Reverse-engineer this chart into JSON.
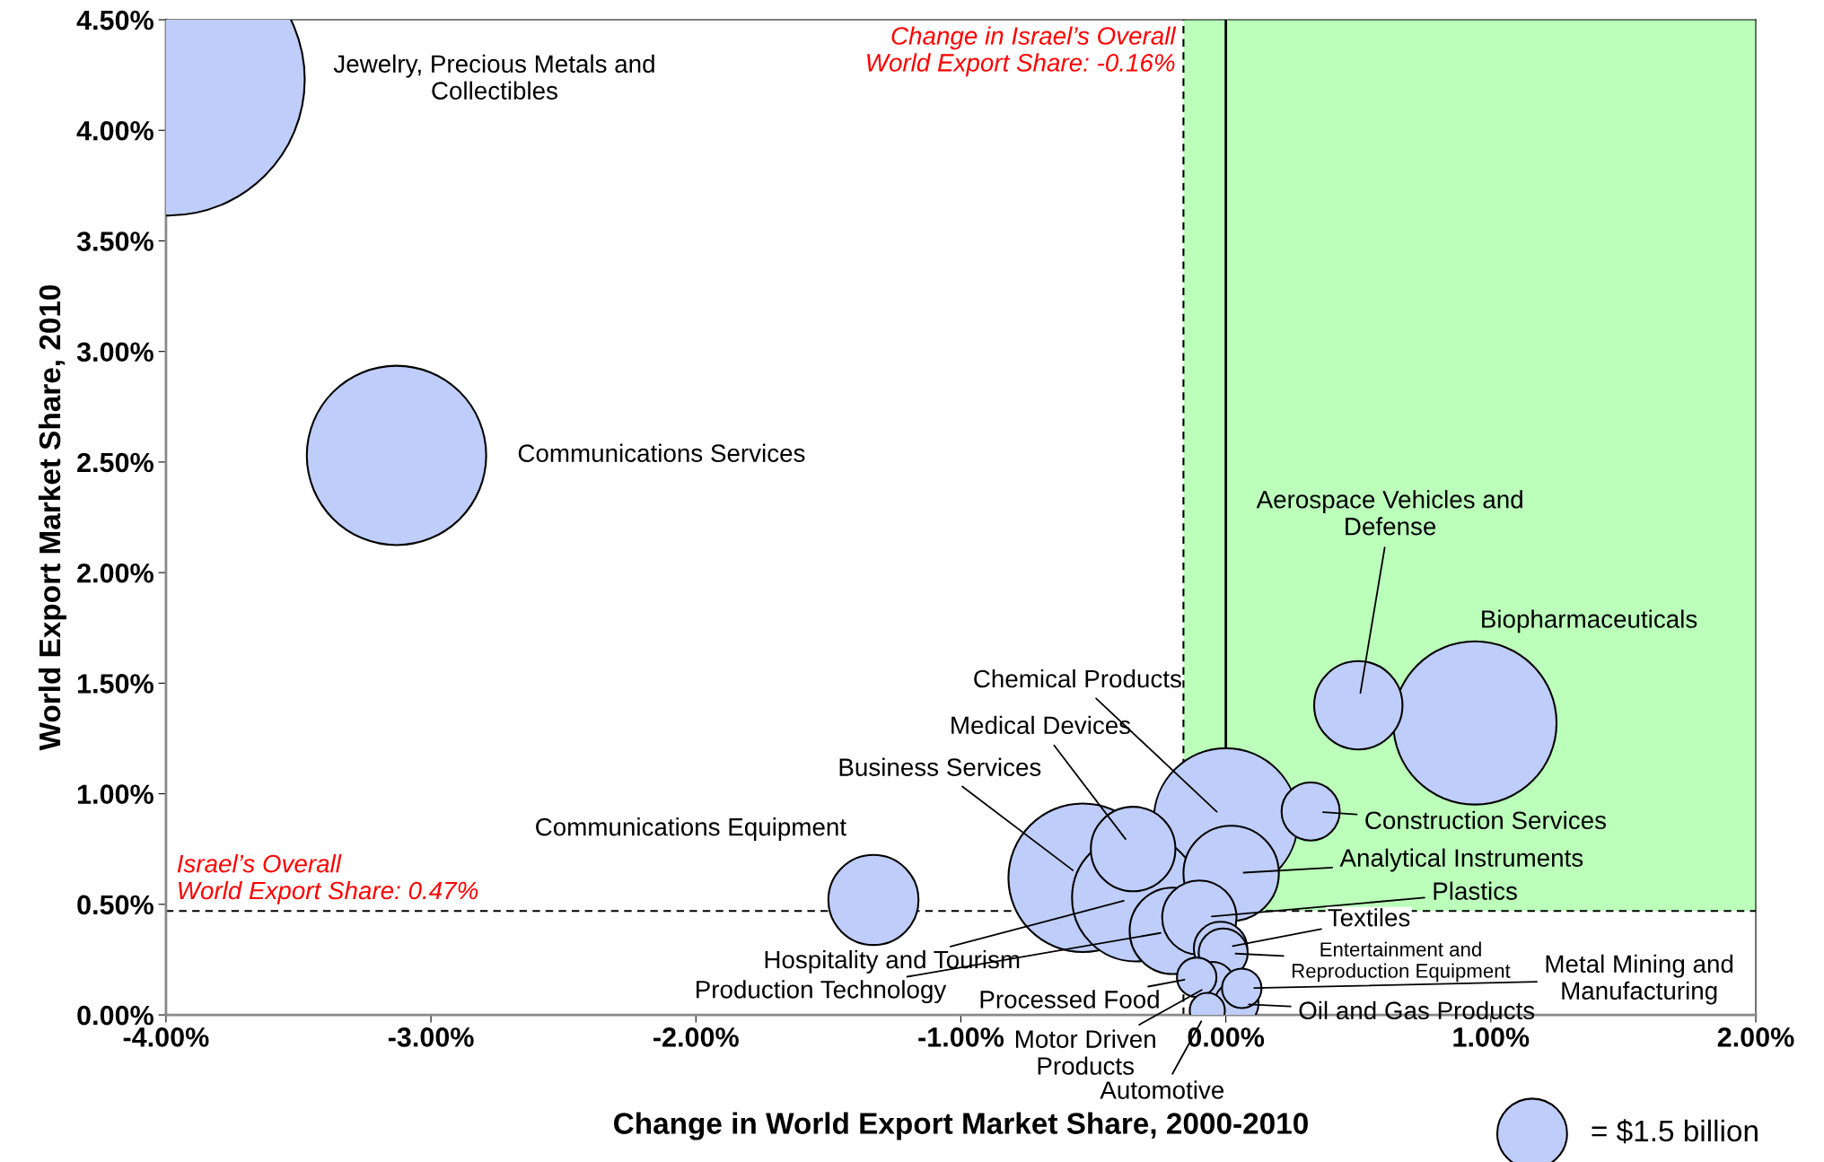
{
  "chart_data": {
    "type": "bubble",
    "xlabel": "Change in World Export Market Share, 2000-2010",
    "ylabel": "World Export Market Share, 2010",
    "series": [
      {
        "name": "Jewelry, Precious Metals and\nCollectibles",
        "color": "#bfcdfa",
        "x": [
          -3.99
        ],
        "values": [
          4.23
        ],
        "sizes": [
          22.8
        ]
      },
      {
        "name": "Communications Services",
        "color": "#bfcdfa",
        "x": [
          -3.13
        ],
        "values": [
          2.53
        ],
        "sizes": [
          9.9
        ]
      },
      {
        "name": "Communications Equipment",
        "color": "#bfcdfa",
        "x": [
          -1.33
        ],
        "values": [
          0.52
        ],
        "sizes": [
          2.5
        ]
      },
      {
        "name": "Business Services",
        "color": "#bfcdfa",
        "x": [
          -0.54
        ],
        "values": [
          0.62
        ],
        "sizes": [
          6.8
        ]
      },
      {
        "name": "Hospitality and Tourism",
        "color": "#bfcdfa",
        "x": [
          -0.34
        ],
        "values": [
          0.53
        ],
        "sizes": [
          5.0
        ]
      },
      {
        "name": "Medical Devices",
        "color": "#bfcdfa",
        "x": [
          -0.35
        ],
        "values": [
          0.75
        ],
        "sizes": [
          2.2
        ]
      },
      {
        "name": "Chemical Products",
        "color": "#bfcdfa",
        "x": [
          0.0
        ],
        "values": [
          0.88
        ],
        "sizes": [
          6.4
        ]
      },
      {
        "name": "Analytical Instruments",
        "color": "#bfcdfa",
        "x": [
          0.02
        ],
        "values": [
          0.64
        ],
        "sizes": [
          2.8
        ]
      },
      {
        "name": "Plastics",
        "color": "#bfcdfa",
        "x": [
          -0.1
        ],
        "values": [
          0.44
        ],
        "sizes": [
          1.7
        ]
      },
      {
        "name": "Production Technology",
        "color": "#bfcdfa",
        "x": [
          -0.2
        ],
        "values": [
          0.38
        ],
        "sizes": [
          2.3
        ]
      },
      {
        "name": "Textiles",
        "color": "#bfcdfa",
        "x": [
          -0.02
        ],
        "values": [
          0.3
        ],
        "sizes": [
          0.88
        ]
      },
      {
        "name": "Entertainment and\nReproduction Equipment",
        "color": "#bfcdfa",
        "x": [
          -0.01
        ],
        "values": [
          0.28
        ],
        "sizes": [
          0.74
        ]
      },
      {
        "name": "Metal Mining and\nManufacturing",
        "color": "#bfcdfa",
        "x": [
          0.06
        ],
        "values": [
          0.12
        ],
        "sizes": [
          0.48
        ]
      },
      {
        "name": "Processed Food",
        "color": "#bfcdfa",
        "x": [
          -0.11
        ],
        "values": [
          0.17
        ],
        "sizes": [
          0.48
        ]
      },
      {
        "name": "Motor Driven\nProducts",
        "color": "#bfcdfa",
        "x": [
          -0.05
        ],
        "values": [
          0.14
        ],
        "sizes": [
          0.6
        ]
      },
      {
        "name": "Oil and Gas Products",
        "color": "#bfcdfa",
        "x": [
          0.04
        ],
        "values": [
          0.05
        ],
        "sizes": [
          0.6
        ]
      },
      {
        "name": "Automotive",
        "color": "#bfcdfa",
        "x": [
          -0.07
        ],
        "values": [
          0.02
        ],
        "sizes": [
          0.38
        ]
      },
      {
        "name": "Aerospace Vehicles and\nDefense",
        "color": "#bfcdfa",
        "x": [
          0.5
        ],
        "values": [
          1.4
        ],
        "sizes": [
          2.4
        ]
      },
      {
        "name": "Biopharmaceuticals",
        "color": "#bfcdfa",
        "x": [
          0.94
        ],
        "values": [
          1.32
        ],
        "sizes": [
          8.2
        ]
      },
      {
        "name": "Construction Services",
        "color": "#bfcdfa",
        "x": [
          0.32
        ],
        "values": [
          0.92
        ],
        "sizes": [
          1.04
        ]
      }
    ],
    "size_legend": [
      {
        "value": 1.5,
        "label": "= $1.5 billion"
      }
    ],
    "marker": "circle",
    "xlim": [
      -4,
      2
    ],
    "ylim": [
      0,
      4.5
    ],
    "xticks": [
      {
        "value": -4,
        "label": "-4.00%"
      },
      {
        "value": -3,
        "label": "-3.00%"
      },
      {
        "value": -2,
        "label": "-2.00%"
      },
      {
        "value": -1,
        "label": "-1.00%"
      },
      {
        "value": 0,
        "label": "0.00%"
      },
      {
        "value": 1,
        "label": "1.00%"
      },
      {
        "value": 2,
        "label": "2.00%"
      }
    ],
    "yticks": [
      {
        "value": 0,
        "label": "0.00%"
      },
      {
        "value": 0.5,
        "label": "0.50%"
      },
      {
        "value": 1,
        "label": "1.00%"
      },
      {
        "value": 1.5,
        "label": "1.50%"
      },
      {
        "value": 2,
        "label": "2.00%"
      },
      {
        "value": 2.5,
        "label": "2.50%"
      },
      {
        "value": 3,
        "label": "3.00%"
      },
      {
        "value": 3.5,
        "label": "3.50%"
      },
      {
        "value": 4,
        "label": "4.00%"
      },
      {
        "value": 4.5,
        "label": "4.50%"
      }
    ],
    "ref_lines": [
      {
        "axis": "y",
        "value": 0.47,
        "label": "Israel’s Overall\nWorld Export Share: 0.47%",
        "color": "#000000",
        "line_style": "dashed"
      },
      {
        "axis": "x",
        "value": -0.16,
        "label": "Change in Israel’s Overall\nWorld Export Share: -0.16%",
        "color": "#000000",
        "line_style": "dashed"
      },
      {
        "axis": "x",
        "value": 0,
        "color": "#000000",
        "line_style": "solid"
      }
    ],
    "bands": [
      {
        "axis": "x",
        "from": -0.16,
        "to": 2,
        "color": "#bbffbb"
      }
    ],
    "grid": false,
    "legend": "bottom right"
  }
}
